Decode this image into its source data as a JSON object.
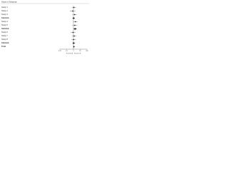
{
  "chart_data": {
    "type": "forest",
    "title": "Study or Subgroup",
    "categories": [
      "Study 1",
      "Study 2",
      "Study 3",
      "Subtotal",
      "Study 4",
      "Study 5",
      "Subtotal",
      "Study 6",
      "Study 7",
      "Study 8",
      "Subtotal",
      "Total"
    ],
    "values": [
      1.2,
      0.8,
      1.5,
      1.1,
      2.0,
      1.6,
      1.8,
      0.9,
      1.3,
      1.1,
      1.1,
      1.2
    ],
    "lower": [
      0.6,
      0.3,
      0.7,
      0.7,
      0.9,
      0.7,
      1.0,
      0.4,
      0.6,
      0.5,
      0.7,
      0.9
    ],
    "upper": [
      2.4,
      2.1,
      3.2,
      1.7,
      4.4,
      3.7,
      3.2,
      2.0,
      2.8,
      2.4,
      1.7,
      1.6
    ],
    "summary": [
      false,
      false,
      false,
      true,
      false,
      false,
      true,
      false,
      false,
      false,
      true,
      true
    ],
    "xlim": [
      0.01,
      100
    ],
    "xticks": [
      0.01,
      0.1,
      1,
      10,
      100
    ],
    "log_scale": true,
    "x_label_left": "Favours A",
    "x_label_right": "Favours B",
    "color": "#222222"
  }
}
